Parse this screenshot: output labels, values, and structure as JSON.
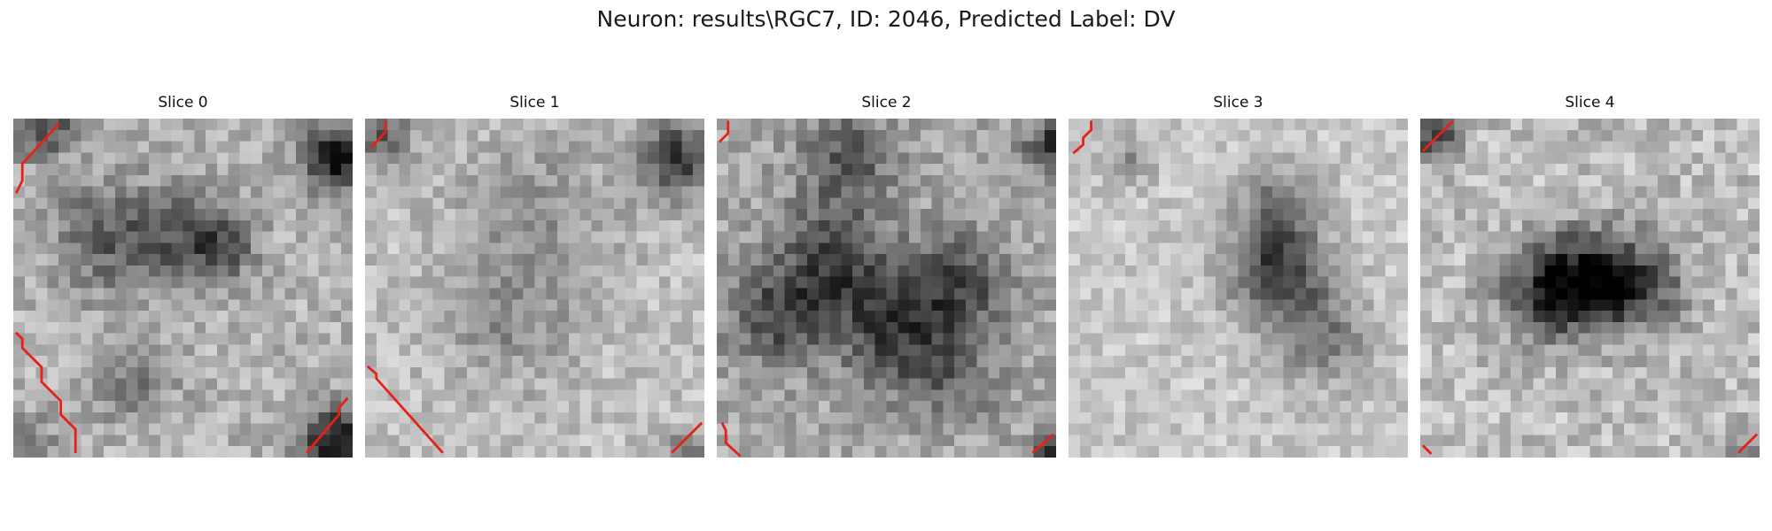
{
  "figure": {
    "title": "Neuron: results\\RGC7, ID: 2046, Predicted Label: DV"
  },
  "colors": {
    "background": "#ffffff",
    "contour": "#e8201a",
    "colormap": "gray"
  },
  "slices": [
    {
      "title": "Slice 0"
    },
    {
      "title": "Slice 1"
    },
    {
      "title": "Slice 2"
    },
    {
      "title": "Slice 3"
    },
    {
      "title": "Slice 4"
    }
  ]
}
